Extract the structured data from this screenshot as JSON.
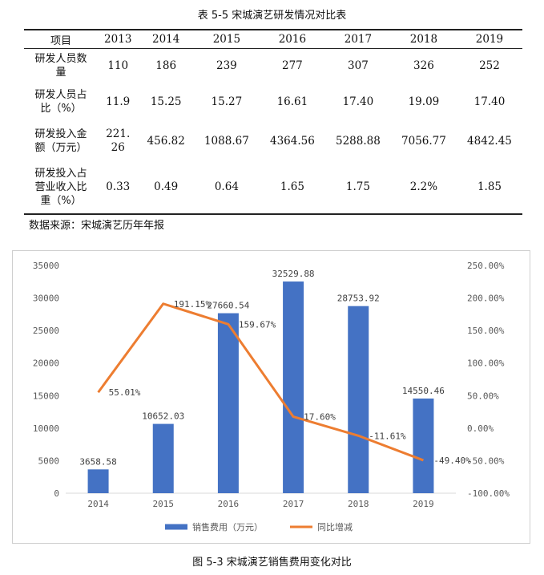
{
  "table": {
    "caption": "表 5-5  宋城演艺研发情况对比表",
    "columns": [
      "项目",
      "2013",
      "2014",
      "2015",
      "2016",
      "2017",
      "2018",
      "2019"
    ],
    "rows": [
      {
        "label_lines": [
          "研发人员数",
          "量"
        ],
        "values": [
          "110",
          "186",
          "239",
          "277",
          "307",
          "326",
          "252"
        ]
      },
      {
        "label_lines": [
          "研发人员占",
          "比（%）"
        ],
        "values": [
          "11.9",
          "15.25",
          "15.27",
          "16.61",
          "17.40",
          "19.09",
          "17.40"
        ]
      },
      {
        "label_lines": [
          "研发投入金",
          "额（万元）"
        ],
        "values": [
          "221.\n26",
          "456.82",
          "1088.67",
          "4364.56",
          "5288.88",
          "7056.77",
          "4842.45"
        ]
      },
      {
        "label_lines": [
          "研发投入占",
          "营业收入比",
          "重（%）"
        ],
        "values": [
          "0.33",
          "0.49",
          "0.64",
          "1.65",
          "1.75",
          "2.2%",
          "1.85"
        ]
      }
    ],
    "source": "数据来源：宋城演艺历年年报"
  },
  "figure_caption": "图 5-3    宋城演艺销售费用变化对比",
  "chart_data": {
    "type": "bar+line",
    "categories": [
      "2014",
      "2015",
      "2016",
      "2017",
      "2018",
      "2019"
    ],
    "series": [
      {
        "name": "销售费用（万元）",
        "type": "bar",
        "axis": "left",
        "values": [
          3658.58,
          10652.03,
          27660.54,
          32529.88,
          28753.92,
          14550.46
        ],
        "labels": [
          "3658.58",
          "10652.03",
          "27660.54",
          "32529.88",
          "28753.92",
          "14550.46"
        ],
        "color": "#4472c4"
      },
      {
        "name": "同比增减",
        "type": "line",
        "axis": "right",
        "values": [
          55.01,
          191.15,
          159.67,
          17.6,
          -11.61,
          -49.4
        ],
        "labels": [
          "55.01%",
          "191.15%",
          "159.67%",
          "17.60%",
          "-11.61%",
          "-49.40%"
        ],
        "color": "#ed7d31"
      }
    ],
    "left_axis": {
      "min": 0,
      "max": 35000,
      "step": 5000,
      "ticks": [
        "0",
        "5000",
        "10000",
        "15000",
        "20000",
        "25000",
        "30000",
        "35000"
      ]
    },
    "right_axis": {
      "min": -100,
      "max": 250,
      "step": 50,
      "ticks": [
        "-100.00%",
        "-50.00%",
        "0.00%",
        "50.00%",
        "100.00%",
        "150.00%",
        "200.00%",
        "250.00%"
      ]
    },
    "legend_position": "bottom",
    "gridlines": false
  }
}
